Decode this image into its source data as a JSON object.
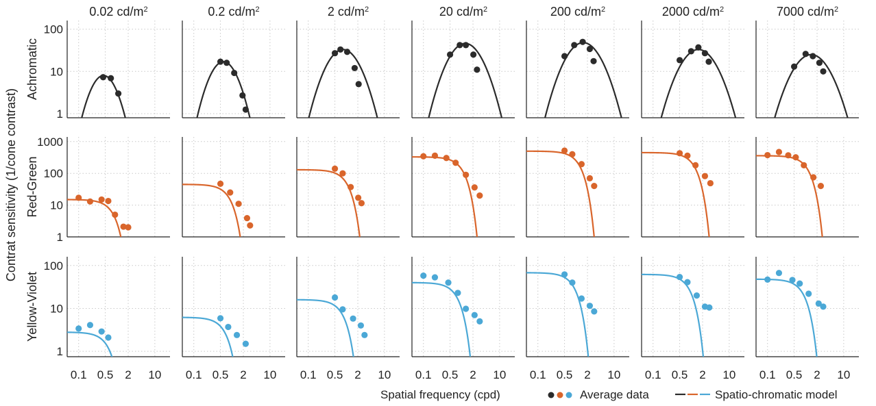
{
  "figure": {
    "ylabel": "Contrat sensitivity (1/cone contrast)",
    "xlabel": "Spatial frequency (cpd)",
    "legend": {
      "data_label": "Average data",
      "model_label": "Spatio-chromatic model"
    },
    "column_titles": [
      {
        "value": "0.02 cd/m",
        "sup": "2"
      },
      {
        "value": "0.2 cd/m",
        "sup": "2"
      },
      {
        "value": "2 cd/m",
        "sup": "2"
      },
      {
        "value": "20 cd/m",
        "sup": "2"
      },
      {
        "value": "200 cd/m",
        "sup": "2"
      },
      {
        "value": "2000 cd/m",
        "sup": "2"
      },
      {
        "value": "7000 cd/m",
        "sup": "2"
      }
    ],
    "rows": [
      {
        "label": "Achromatic",
        "color": "#2b2b2b",
        "y_ticks": [
          "1",
          "10",
          "100"
        ]
      },
      {
        "label": "Red-Green",
        "color": "#d9652b",
        "y_ticks": [
          "1",
          "10",
          "100",
          "1000"
        ]
      },
      {
        "label": "Yellow-Violet",
        "color": "#4ba8d6",
        "y_ticks": [
          "1",
          "10",
          "100"
        ]
      }
    ],
    "x_ticks": [
      "0.1",
      "0.5",
      "2",
      "10"
    ],
    "colors": {
      "achromatic": "#2b2b2b",
      "red_green": "#d9652b",
      "yellow_violet": "#4ba8d6",
      "grid": "#c8c8c8"
    }
  },
  "chart_data": {
    "type": "scatter",
    "x_scale": "log",
    "y_scale": "log",
    "x_unit": "cpd",
    "xlim": [
      0.05,
      25
    ],
    "x_ticks": [
      0.1,
      0.5,
      2,
      10
    ],
    "luminance_cd_m2": [
      0.02,
      0.2,
      2,
      20,
      200,
      2000,
      7000
    ],
    "rows": [
      {
        "name": "Achromatic",
        "ylim": [
          0.8,
          160
        ],
        "y_ticks": [
          1,
          10,
          100
        ],
        "model": {
          "shape": "log-parabola",
          "peak_freq": [
            0.45,
            0.6,
            0.82,
            1.25,
            1.55,
            1.55,
            1.4
          ],
          "peak_sens": [
            8,
            17,
            33,
            46,
            48,
            33,
            25
          ],
          "bandwidth_octaves": [
            1.9,
            2.0,
            2.35,
            2.4,
            2.5,
            2.55,
            2.6
          ]
        },
        "data": [
          [
            [
              0.44,
              7.3
            ],
            [
              0.7,
              6.9
            ],
            [
              1.1,
              3.0
            ]
          ],
          [
            [
              0.5,
              17
            ],
            [
              0.73,
              16
            ],
            [
              1.15,
              9.2
            ],
            [
              1.9,
              2.7
            ],
            [
              2.3,
              1.25
            ]
          ],
          [
            [
              0.5,
              27
            ],
            [
              0.7,
              33
            ],
            [
              1.05,
              29
            ],
            [
              1.65,
              12
            ],
            [
              2.1,
              5
            ]
          ],
          [
            [
              0.5,
              25
            ],
            [
              0.9,
              42
            ],
            [
              1.3,
              42
            ],
            [
              2.05,
              25
            ],
            [
              2.55,
              11
            ]
          ],
          [
            [
              0.5,
              23
            ],
            [
              0.9,
              42
            ],
            [
              1.5,
              50
            ],
            [
              2.3,
              34
            ],
            [
              2.9,
              17.5
            ]
          ],
          [
            [
              0.5,
              18.5
            ],
            [
              1.0,
              30
            ],
            [
              1.55,
              37
            ],
            [
              2.3,
              27
            ],
            [
              2.9,
              17
            ]
          ],
          [
            [
              0.5,
              13
            ],
            [
              1.0,
              26
            ],
            [
              1.55,
              23
            ],
            [
              2.3,
              16
            ],
            [
              2.9,
              10
            ]
          ]
        ]
      },
      {
        "name": "Red-Green",
        "ylim": [
          1,
          1400
        ],
        "y_ticks": [
          1,
          10,
          100,
          1000
        ],
        "model": {
          "shape": "low-pass",
          "plateau": [
            15,
            45,
            130,
            330,
            500,
            450,
            360
          ],
          "corner_freq": [
            0.55,
            0.6,
            0.72,
            0.75,
            0.85,
            0.85,
            0.8
          ]
        },
        "data": [
          [
            [
              0.1,
              17
            ],
            [
              0.2,
              13
            ],
            [
              0.4,
              15
            ],
            [
              0.6,
              13.5
            ],
            [
              0.9,
              5
            ],
            [
              1.5,
              2.1
            ],
            [
              2.0,
              2
            ]
          ],
          [
            [
              0.5,
              47
            ],
            [
              0.9,
              25
            ],
            [
              1.5,
              11
            ],
            [
              2.5,
              3.9
            ],
            [
              3.0,
              2.3
            ]
          ],
          [
            [
              0.5,
              140
            ],
            [
              0.8,
              100
            ],
            [
              1.3,
              37
            ],
            [
              2.05,
              17
            ],
            [
              2.5,
              11.5
            ]
          ],
          [
            [
              0.1,
              345
            ],
            [
              0.2,
              360
            ],
            [
              0.4,
              305
            ],
            [
              0.7,
              215
            ],
            [
              1.3,
              90
            ],
            [
              2.2,
              36
            ],
            [
              3.0,
              20
            ]
          ],
          [
            [
              0.5,
              520
            ],
            [
              0.8,
              400
            ],
            [
              1.4,
              195
            ],
            [
              2.3,
              70
            ],
            [
              3.0,
              40
            ]
          ],
          [
            [
              0.5,
              430
            ],
            [
              0.8,
              360
            ],
            [
              1.3,
              180
            ],
            [
              2.3,
              82
            ],
            [
              3.2,
              49
            ]
          ],
          [
            [
              0.1,
              375
            ],
            [
              0.2,
              470
            ],
            [
              0.35,
              370
            ],
            [
              0.55,
              320
            ],
            [
              0.9,
              180
            ],
            [
              1.6,
              75
            ],
            [
              2.5,
              40
            ]
          ]
        ]
      },
      {
        "name": "Yellow-Violet",
        "ylim": [
          0.75,
          160
        ],
        "y_ticks": [
          1,
          10,
          100
        ],
        "model": {
          "shape": "low-pass",
          "plateau": [
            2.8,
            6.2,
            16,
            40,
            68,
            62,
            48
          ],
          "corner_freq": [
            0.46,
            0.51,
            0.62,
            0.6,
            0.7,
            0.7,
            0.68
          ]
        },
        "data": [
          [
            [
              0.1,
              3.4
            ],
            [
              0.2,
              4.1
            ],
            [
              0.4,
              2.9
            ],
            [
              0.6,
              2.1
            ]
          ],
          [
            [
              0.5,
              5.9
            ],
            [
              0.8,
              3.7
            ],
            [
              1.35,
              2.4
            ],
            [
              2.3,
              1.5
            ]
          ],
          [
            [
              0.5,
              18
            ],
            [
              0.8,
              9.5
            ],
            [
              1.5,
              5.8
            ],
            [
              2.4,
              4
            ],
            [
              3.0,
              2.4
            ]
          ],
          [
            [
              0.1,
              58
            ],
            [
              0.2,
              53
            ],
            [
              0.45,
              40
            ],
            [
              0.8,
              23
            ],
            [
              1.3,
              9.8
            ],
            [
              2.2,
              7
            ],
            [
              3.0,
              5
            ]
          ],
          [
            [
              0.5,
              62
            ],
            [
              0.8,
              40
            ],
            [
              1.4,
              17
            ],
            [
              2.3,
              11.5
            ],
            [
              3.0,
              8.5
            ]
          ],
          [
            [
              0.5,
              54
            ],
            [
              0.8,
              41
            ],
            [
              1.4,
              20
            ],
            [
              2.3,
              11
            ],
            [
              3.0,
              10.5
            ]
          ],
          [
            [
              0.1,
              47
            ],
            [
              0.2,
              67
            ],
            [
              0.45,
              46
            ],
            [
              0.7,
              38
            ],
            [
              1.2,
              22
            ],
            [
              2.2,
              13
            ],
            [
              2.9,
              11
            ]
          ]
        ]
      }
    ]
  }
}
